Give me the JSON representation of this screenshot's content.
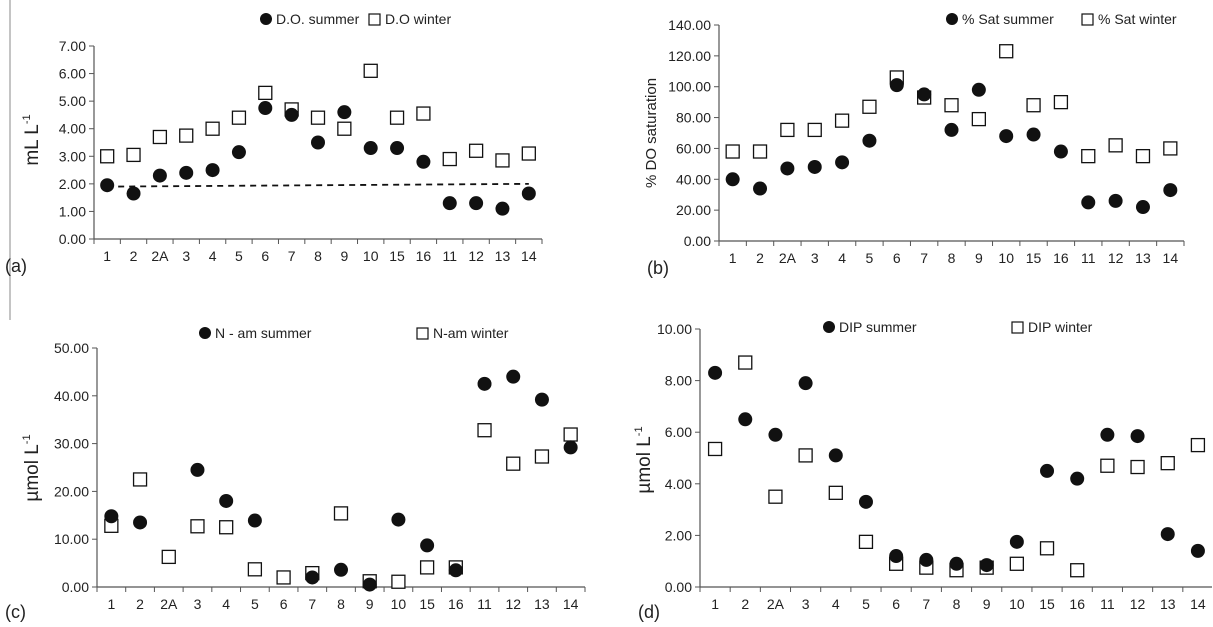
{
  "chart_data": [
    {
      "type": "scatter",
      "panel_label": "(a)",
      "ylabel": "mL L",
      "ylabel_sup": "-1",
      "ylim": [
        0,
        7
      ],
      "ytick_values": [
        0,
        1,
        2,
        3,
        4,
        5,
        6,
        7
      ],
      "ytick_labels": [
        "0.00",
        "1.00",
        "2.00",
        "3.00",
        "4.00",
        "5.00",
        "6.00",
        "7.00"
      ],
      "categories": [
        "1",
        "2",
        "2A",
        "3",
        "4",
        "5",
        "6",
        "7",
        "8",
        "9",
        "10",
        "15",
        "16",
        "11",
        "12",
        "13",
        "14"
      ],
      "legend": [
        "D.O. summer",
        "D.O winter"
      ],
      "series": [
        {
          "name": "D.O. summer",
          "marker": "filled-circle",
          "values": [
            1.95,
            1.65,
            2.3,
            2.4,
            2.5,
            3.15,
            4.75,
            4.5,
            3.5,
            4.6,
            3.3,
            3.3,
            2.8,
            1.3,
            1.3,
            1.1,
            1.65
          ]
        },
        {
          "name": "D.O winter",
          "marker": "open-square",
          "values": [
            3.0,
            3.05,
            3.7,
            3.75,
            4.0,
            4.4,
            5.3,
            4.7,
            4.4,
            4.0,
            6.1,
            4.4,
            4.55,
            2.9,
            3.2,
            2.85,
            3.1
          ]
        }
      ],
      "reference_line": {
        "style": "dashed",
        "y_start": 1.9,
        "y_end": 2.0
      }
    },
    {
      "type": "scatter",
      "panel_label": "(b)",
      "ylabel": "% DO saturation",
      "ylabel_sup": "",
      "ylim": [
        0,
        140
      ],
      "ytick_values": [
        0,
        20,
        40,
        60,
        80,
        100,
        120,
        140
      ],
      "ytick_labels": [
        "0.00",
        "20.00",
        "40.00",
        "60.00",
        "80.00",
        "100.00",
        "120.00",
        "140.00"
      ],
      "categories": [
        "1",
        "2",
        "2A",
        "3",
        "4",
        "5",
        "6",
        "7",
        "8",
        "9",
        "10",
        "15",
        "16",
        "11",
        "12",
        "13",
        "14"
      ],
      "legend": [
        "% Sat summer",
        "% Sat winter"
      ],
      "series": [
        {
          "name": "% Sat summer",
          "marker": "filled-circle",
          "values": [
            40,
            34,
            47,
            48,
            51,
            65,
            101,
            95,
            72,
            98,
            68,
            69,
            58,
            25,
            26,
            22,
            33
          ]
        },
        {
          "name": "% Sat winter",
          "marker": "open-square",
          "values": [
            58,
            58,
            72,
            72,
            78,
            87,
            106,
            93,
            88,
            79,
            123,
            88,
            90,
            55,
            62,
            55,
            60
          ]
        }
      ]
    },
    {
      "type": "scatter",
      "panel_label": "(c)",
      "ylabel": "µmol L",
      "ylabel_sup": "-1",
      "ylim": [
        0,
        50
      ],
      "ytick_values": [
        0,
        10,
        20,
        30,
        40,
        50
      ],
      "ytick_labels": [
        "0.00",
        "10.00",
        "20.00",
        "30.00",
        "40.00",
        "50.00"
      ],
      "categories": [
        "1",
        "2",
        "2A",
        "3",
        "4",
        "5",
        "6",
        "7",
        "8",
        "9",
        "10",
        "15",
        "16",
        "11",
        "12",
        "13",
        "14"
      ],
      "legend": [
        "N - am summer",
        "N-am winter"
      ],
      "series": [
        {
          "name": "N - am summer",
          "marker": "filled-circle",
          "values": [
            14.8,
            13.5,
            null,
            24.5,
            18.0,
            13.9,
            null,
            2.0,
            3.6,
            0.5,
            14.1,
            8.7,
            3.5,
            42.5,
            44.0,
            39.2,
            29.2
          ]
        },
        {
          "name": "N-am winter",
          "marker": "open-square",
          "values": [
            12.8,
            22.5,
            6.3,
            12.7,
            12.5,
            3.7,
            2.0,
            2.9,
            15.4,
            1.2,
            1.1,
            4.1,
            4.1,
            32.8,
            25.8,
            27.3,
            31.9
          ]
        }
      ]
    },
    {
      "type": "scatter",
      "panel_label": "(d)",
      "ylabel": "µmol L",
      "ylabel_sup": "-1",
      "ylim": [
        0,
        10
      ],
      "ytick_values": [
        0,
        2,
        4,
        6,
        8,
        10
      ],
      "ytick_labels": [
        "0.00",
        "2.00",
        "4.00",
        "6.00",
        "8.00",
        "10.00"
      ],
      "categories": [
        "1",
        "2",
        "2A",
        "3",
        "4",
        "5",
        "6",
        "7",
        "8",
        "9",
        "10",
        "15",
        "16",
        "11",
        "12",
        "13",
        "14"
      ],
      "legend": [
        "DIP summer",
        "DIP winter"
      ],
      "series": [
        {
          "name": "DIP summer",
          "marker": "filled-circle",
          "values": [
            8.3,
            6.5,
            5.9,
            7.9,
            5.1,
            3.3,
            1.2,
            1.05,
            0.9,
            0.85,
            1.75,
            4.5,
            4.2,
            5.9,
            5.85,
            2.05,
            1.4
          ]
        },
        {
          "name": "DIP winter",
          "marker": "open-square",
          "values": [
            5.35,
            8.7,
            3.5,
            5.1,
            3.65,
            1.75,
            0.9,
            0.75,
            0.65,
            0.75,
            0.9,
            1.5,
            0.65,
            4.7,
            4.65,
            4.8,
            5.5
          ]
        }
      ]
    }
  ]
}
